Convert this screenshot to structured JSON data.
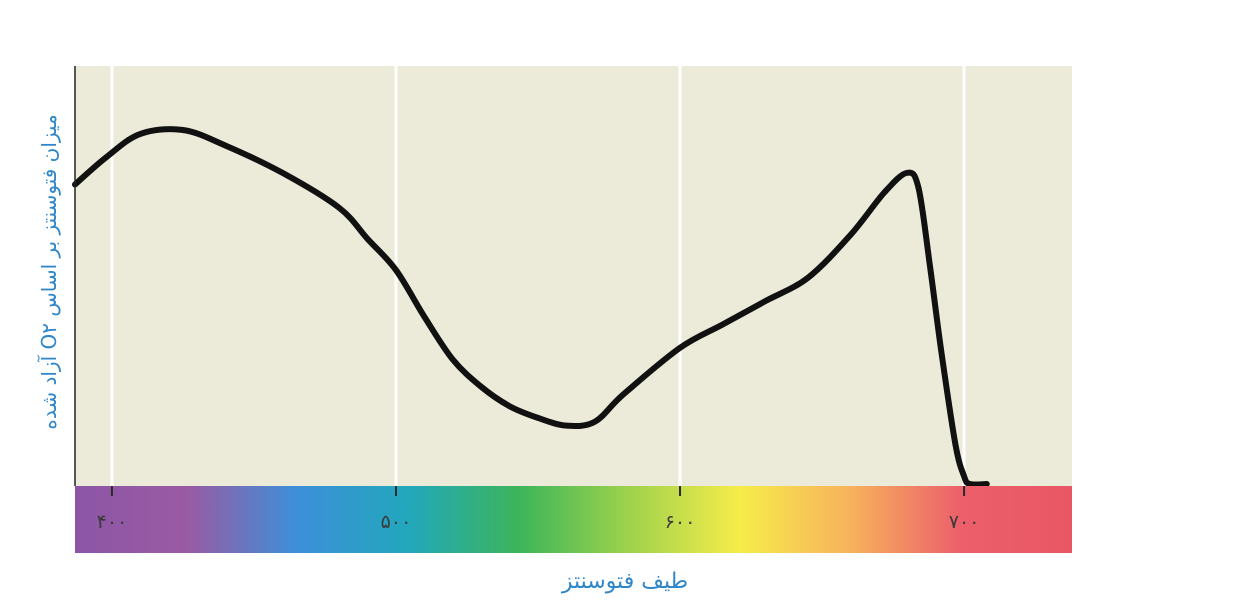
{
  "chart_data": {
    "type": "line",
    "title": "",
    "xlabel": "طیف فتوسنتز",
    "ylabel": "میزان فتوسنتز بر اساس O۲ آزاد شده",
    "xlim": [
      387,
      738
    ],
    "ylim": [
      0,
      100
    ],
    "grid": true,
    "gridlines_x": [
      400,
      500,
      600,
      700
    ],
    "ticks": [
      {
        "value": 400,
        "label": "۴۰۰"
      },
      {
        "value": 500,
        "label": "۵۰۰"
      },
      {
        "value": 600,
        "label": "۶۰۰"
      },
      {
        "value": 700,
        "label": "۷۰۰"
      }
    ],
    "series": [
      {
        "x": [
          387,
          398,
          410,
          425,
          440,
          460,
          480,
          490,
          500,
          510,
          520,
          530,
          540,
          550,
          560,
          570,
          580,
          600,
          615,
          630,
          645,
          660,
          672,
          680,
          684,
          688,
          692,
          697,
          700,
          702,
          708
        ],
        "y": [
          77,
          84,
          90,
          91,
          87,
          80,
          71,
          63,
          55,
          43,
          32,
          25,
          20,
          17,
          15,
          16,
          23,
          35,
          41,
          47,
          53,
          64,
          75,
          80,
          76,
          56,
          34,
          10,
          2,
          0,
          0
        ]
      }
    ],
    "colors": {
      "plot_background": "#ecebd9",
      "gridline": "#ffffff",
      "curve": "#111111",
      "spectrum": [
        "#8c56a6",
        "#9a5aa3",
        "#3d8fd9",
        "#22a7bd",
        "#3cb55a",
        "#9ed24c",
        "#f6ec4a",
        "#f7b25c",
        "#ec5f6b",
        "#e95765"
      ]
    }
  }
}
